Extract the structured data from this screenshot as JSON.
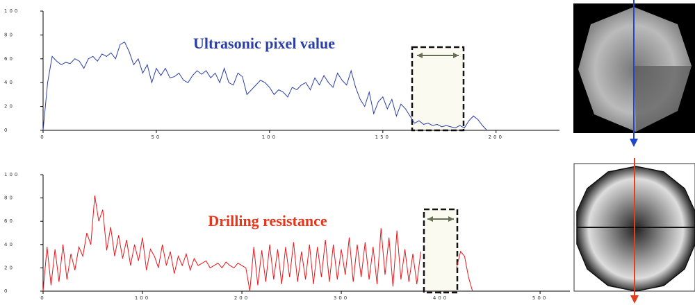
{
  "chart_data": [
    {
      "type": "line",
      "title": "Ultrasonic pixel value",
      "color": "#2b3fa8",
      "x": [
        0,
        2,
        4,
        6,
        8,
        10,
        12,
        14,
        16,
        18,
        20,
        22,
        24,
        26,
        28,
        30,
        32,
        34,
        36,
        38,
        40,
        42,
        44,
        46,
        48,
        50,
        52,
        54,
        56,
        58,
        60,
        62,
        64,
        66,
        68,
        70,
        72,
        74,
        76,
        78,
        80,
        82,
        84,
        86,
        88,
        90,
        92,
        94,
        96,
        98,
        100,
        102,
        104,
        106,
        108,
        110,
        112,
        114,
        116,
        118,
        120,
        122,
        124,
        126,
        128,
        130,
        132,
        134,
        136,
        138,
        140,
        142,
        144,
        146,
        148,
        150,
        152,
        154,
        156,
        158,
        160,
        162,
        164,
        166,
        168,
        170,
        172,
        174,
        176,
        178,
        180,
        182,
        184,
        186,
        188,
        190,
        192,
        194,
        196
      ],
      "values": [
        0,
        40,
        62,
        58,
        55,
        57,
        56,
        60,
        58,
        52,
        60,
        62,
        58,
        64,
        62,
        65,
        60,
        72,
        74,
        66,
        55,
        60,
        48,
        55,
        40,
        52,
        46,
        52,
        44,
        45,
        48,
        42,
        40,
        46,
        50,
        47,
        50,
        44,
        48,
        40,
        52,
        40,
        38,
        48,
        45,
        30,
        34,
        38,
        42,
        40,
        36,
        30,
        34,
        32,
        28,
        36,
        34,
        38,
        40,
        34,
        44,
        38,
        46,
        40,
        36,
        48,
        42,
        38,
        50,
        36,
        26,
        20,
        32,
        14,
        24,
        28,
        18,
        26,
        12,
        22,
        18,
        12,
        6,
        8,
        5,
        6,
        4,
        5,
        3,
        4,
        3,
        2,
        4,
        2,
        8,
        12,
        9,
        4,
        0
      ],
      "xlim": [
        0,
        228
      ],
      "xticks": [
        0,
        50,
        100,
        150,
        200
      ],
      "ylim": [
        0,
        100
      ],
      "yticks": [
        0,
        20,
        40,
        60,
        80,
        100
      ]
    },
    {
      "type": "line",
      "title": "Drilling resistance",
      "color": "#e8161b",
      "x": [
        0,
        4,
        8,
        12,
        16,
        20,
        24,
        28,
        32,
        36,
        40,
        44,
        48,
        52,
        56,
        60,
        64,
        68,
        72,
        76,
        80,
        84,
        88,
        92,
        96,
        100,
        104,
        108,
        112,
        116,
        120,
        124,
        128,
        132,
        136,
        140,
        144,
        148,
        152,
        156,
        160,
        164,
        168,
        172,
        176,
        180,
        184,
        188,
        192,
        196,
        200,
        204,
        208,
        212,
        216,
        220,
        224,
        228,
        232,
        236,
        240,
        244,
        248,
        252,
        256,
        260,
        264,
        268,
        272,
        276,
        280,
        284,
        288,
        292,
        296,
        300,
        304,
        308,
        312,
        316,
        320,
        324,
        328,
        332,
        336,
        340,
        344,
        348,
        352,
        356,
        360,
        364,
        368,
        372,
        376,
        380,
        384,
        388,
        392,
        396,
        400,
        404,
        408,
        412,
        416,
        420,
        424,
        428,
        432
      ],
      "values": [
        0,
        38,
        5,
        36,
        8,
        40,
        10,
        32,
        18,
        38,
        30,
        50,
        40,
        82,
        60,
        70,
        35,
        55,
        30,
        48,
        28,
        44,
        22,
        40,
        26,
        46,
        18,
        36,
        30,
        20,
        40,
        22,
        34,
        15,
        30,
        22,
        32,
        18,
        28,
        22,
        24,
        26,
        20,
        22,
        24,
        20,
        25,
        22,
        20,
        24,
        22,
        20,
        0,
        38,
        5,
        35,
        8,
        40,
        10,
        36,
        6,
        38,
        12,
        42,
        8,
        34,
        10,
        40,
        6,
        38,
        12,
        44,
        8,
        40,
        10,
        36,
        14,
        46,
        8,
        40,
        12,
        42,
        10,
        38,
        6,
        54,
        14,
        46,
        4,
        52,
        10,
        36,
        8,
        32,
        6,
        34,
        null,
        null,
        null,
        null,
        null,
        null,
        null,
        null,
        20,
        34,
        30,
        12,
        0
      ],
      "xlim": [
        0,
        530
      ],
      "xticks": [
        0,
        100,
        200,
        300,
        400,
        500
      ],
      "ylim": [
        0,
        100
      ],
      "yticks": [
        0,
        20,
        40,
        60,
        80,
        100
      ]
    }
  ]
}
